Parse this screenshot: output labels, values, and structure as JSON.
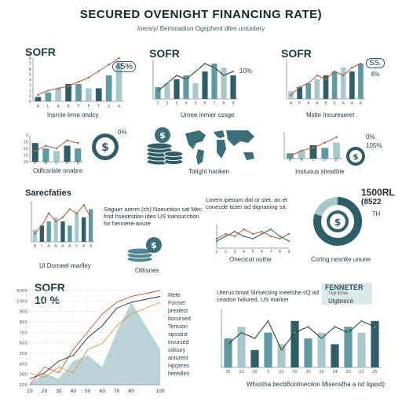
{
  "header": {
    "title": "SECURED OVENIGHT FINANCING RATE)",
    "subtitle": "Inersry/ Bemmadion Ogephent dfen untuntery"
  },
  "colors": {
    "teal_dark": "#2f5d68",
    "teal_mid": "#5e9aa4",
    "teal_light": "#a9c8cc",
    "red": "#d64a32",
    "orange": "#e0943a",
    "green": "#5a9a5a",
    "dark": "#1f2d33"
  },
  "panels": {
    "p1": {
      "title": "SOFR",
      "badge": "45%",
      "caption": "Insrcle-lrme ondcy"
    },
    "p2": {
      "title": "SOFR",
      "badge": "10%",
      "caption": "Umee inmier cssge"
    },
    "p3": {
      "title": "SOFR",
      "badge1": "SS.",
      "badge2": "4%",
      "caption": "Mstle Incureseret"
    },
    "p4": {
      "badge": "0%",
      "caption": "Odfcsriste onabre"
    },
    "p5": {
      "caption": "Totight hanken"
    },
    "p6": {
      "badge1": "0%",
      "badge2": "105%",
      "caption": "Instuous slreatbie"
    },
    "p7": {
      "title": "Sarecfaties",
      "caption": "Ul Dorneel marlley"
    },
    "p8": {
      "text": "Soguer arerm (ch) Noeuntion sat Mec fmd hsestrstion ides US transucction for hennere-anure",
      "caption": "Oiltisnes"
    },
    "p9": {
      "text": "Lorem ipeoum dol or stet, an et conecde ticter ad dignaning sit,",
      "caption": "Onecicut outhe"
    },
    "p10": {
      "value1": "1500RL",
      "value2": "(8522",
      "value3": "7H",
      "caption": "Corlng nesnlte unune"
    },
    "p11": {
      "title": "SOFR",
      "value": "10 %",
      "list": [
        "Mete",
        "Forrsel",
        "prestect",
        "bocursed",
        "Temuon",
        "sipsstist",
        "incursed",
        "ssloury",
        "anturent",
        "Hprptres",
        "heredlint"
      ]
    },
    "p12": {
      "text": "Uterus broid Slnsecting ineetshe sQ ad ceadon holured, US market",
      "legend1": "FENNETER",
      "legend2": "Tkp lichie",
      "legend3": "Uigbrece",
      "caption": "Whsstha becbBonlinecilon Misensfha a nd ligasd)"
    }
  },
  "chart_data": [
    {
      "type": "bar",
      "title": "SOFR",
      "categories": [
        "A",
        "L",
        "A",
        "B",
        "T",
        "F",
        "T",
        "S",
        "A"
      ],
      "values": [
        1,
        2,
        3,
        4,
        4,
        3,
        3,
        6,
        9
      ],
      "series": [
        {
          "values": [
            1.5,
            2.5,
            3,
            3.5,
            4.5,
            5.5,
            7,
            8.5,
            10
          ]
        }
      ],
      "ylim": [
        0,
        10
      ],
      "yticks": [
        "0",
        "1",
        "2",
        "3",
        "4",
        "5",
        "6",
        "7",
        "8"
      ],
      "xlabel": "Insrcle-lrme ondcy"
    },
    {
      "type": "bar",
      "title": "SOFR",
      "categories": [
        "1",
        "2",
        "3",
        "4",
        "5",
        "6",
        "7",
        "8",
        "9"
      ],
      "values": [
        3,
        4,
        5,
        6,
        4,
        7,
        9,
        8,
        6
      ],
      "series": [
        {
          "values": [
            2,
            4,
            6,
            5,
            7,
            9,
            8,
            6,
            7
          ]
        }
      ],
      "ylim": [
        0,
        10
      ],
      "xlabel": "Umee inmier cssge"
    },
    {
      "type": "bar",
      "title": "SOFR",
      "categories": [
        "A",
        "P",
        "A",
        "A",
        "B",
        "S",
        "A",
        "A",
        "A"
      ],
      "values": [
        2,
        3,
        4,
        5,
        6,
        7,
        8,
        7,
        9
      ],
      "series": [
        {
          "values": [
            1,
            3,
            4,
            6,
            5,
            7,
            6,
            8,
            9
          ]
        }
      ],
      "ylim": [
        0,
        10
      ],
      "xlabel": "Mstle Incureseret"
    },
    {
      "type": "bar",
      "categories": [
        "A",
        "B",
        "C",
        "D",
        "E"
      ],
      "values": [
        7,
        5,
        4,
        6,
        5
      ],
      "series": [
        {
          "values": [
            4,
            6,
            5,
            8,
            7
          ]
        }
      ],
      "ylim": [
        0,
        10
      ],
      "yticks": [
        "20",
        "10",
        "10",
        "10",
        "0"
      ],
      "xlabel": "Odfcsriste onabre"
    },
    {
      "type": "bar",
      "categories": [
        "A",
        "B",
        "C",
        "D",
        "E"
      ],
      "values": [
        2,
        3,
        5,
        4,
        6
      ],
      "series": [
        {
          "values": [
            1,
            3,
            4,
            6,
            8
          ]
        }
      ],
      "ylim": [
        0,
        10
      ],
      "xlabel": "Instuous slreatbie"
    },
    {
      "type": "bar",
      "title": "Sarecfaties",
      "categories": [
        "A",
        "I",
        "A",
        "A",
        "A",
        "A",
        "C",
        "A",
        "A"
      ],
      "values": [
        3,
        4,
        5,
        6,
        5,
        4,
        7,
        6,
        8
      ],
      "series": [
        {
          "values": [
            2,
            4,
            7,
            5,
            6,
            8,
            7,
            9,
            6
          ]
        }
      ],
      "ylim": [
        0,
        10
      ],
      "xlabel": "Ul Dorneel marlley"
    },
    {
      "type": "line",
      "categories": [
        "1",
        "2",
        "3",
        "4",
        "5",
        "6",
        "7",
        "8",
        "9"
      ],
      "series": [
        {
          "values": [
            4,
            6,
            5,
            8,
            6,
            7,
            5,
            4,
            6
          ]
        },
        {
          "values": [
            3,
            5,
            7,
            5,
            4,
            6,
            8,
            5,
            3
          ]
        }
      ],
      "ylim": [
        0,
        10
      ],
      "xlabel": "Onecicut outhe"
    },
    {
      "type": "line",
      "title": "SOFR",
      "x": [
        10,
        20,
        30,
        40,
        50,
        60,
        70,
        80,
        100
      ],
      "yticks": [
        "200",
        "300",
        "400",
        "500",
        "600",
        "700",
        "800",
        "900",
        "1000",
        "5000"
      ],
      "series": [
        {
          "values": [
            200,
            350,
            300,
            500,
            650,
            800,
            900,
            950,
            1000
          ]
        },
        {
          "values": [
            250,
            300,
            400,
            450,
            600,
            700,
            850,
            900,
            950
          ]
        },
        {
          "values": [
            300,
            260,
            350,
            300,
            500,
            550,
            700,
            800,
            900
          ]
        }
      ],
      "area": [
        200,
        300,
        250,
        400,
        450,
        350,
        650,
        900,
        500
      ]
    },
    {
      "type": "bar",
      "categories": [
        "25",
        "20",
        "30",
        "3",
        "20",
        "50",
        "20",
        "28",
        "24",
        "20",
        "21",
        "25"
      ],
      "values": [
        5,
        7,
        3,
        6,
        4,
        8,
        5,
        6,
        4,
        7,
        6,
        8
      ],
      "series": [
        {
          "values": [
            4,
            6,
            5,
            8,
            3,
            6,
            7,
            5,
            7,
            6,
            8,
            7
          ]
        }
      ],
      "ylim": [
        0,
        10
      ],
      "xlabel": "Whsstha becbBonlinecilon Misensfha a nd ligasd)"
    }
  ]
}
